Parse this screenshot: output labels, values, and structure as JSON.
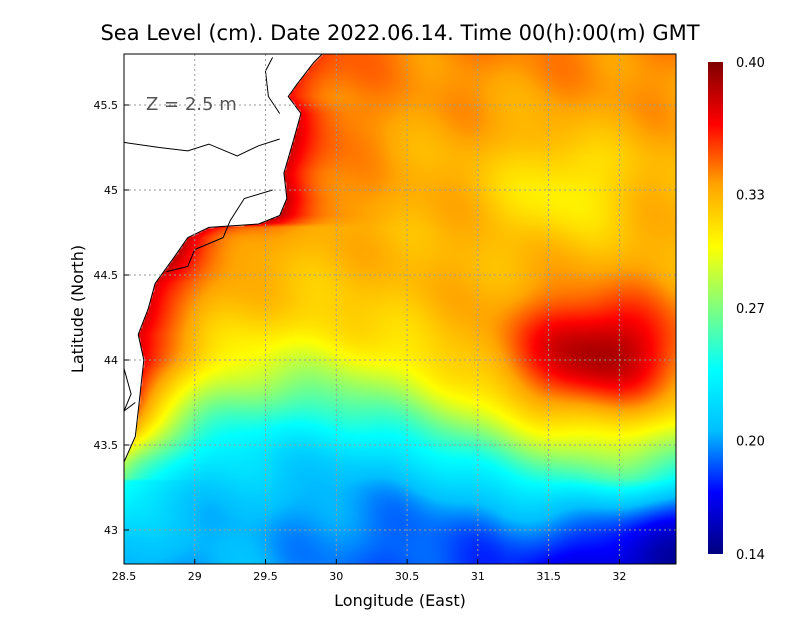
{
  "chart_data": {
    "type": "heatmap",
    "title": "Sea Level (cm). Date 2022.06.14. Time 00(h):00(m) GMT",
    "xlabel": "Longitude (East)",
    "ylabel": "Latitude (North)",
    "annotation": "Z = 2.5 m",
    "xlim": [
      28.5,
      32.4
    ],
    "ylim": [
      42.8,
      45.8
    ],
    "x_ticks": [
      "28.5",
      "29",
      "29.5",
      "30",
      "30.5",
      "31",
      "31.5",
      "32"
    ],
    "y_ticks": [
      "43",
      "43.5",
      "44",
      "44.5",
      "45",
      "45.5"
    ],
    "grid": true,
    "colorbar": {
      "min": 0.14,
      "max": 0.4,
      "tick_labels": [
        "0.40",
        "0.33",
        "0.27",
        "0.20",
        "0.14"
      ],
      "colormap": [
        "#00007f",
        "#0000ff",
        "#00bfff",
        "#00ffff",
        "#7fff7f",
        "#ffff00",
        "#ffa500",
        "#ff0000",
        "#7f0000"
      ]
    },
    "field_features": [
      {
        "region": "coastal band along west/north shore",
        "value": 0.38
      },
      {
        "region": "eddy centered near 31.9E 44.0N",
        "value": 0.39
      },
      {
        "region": "high near 31.6E 45.0N",
        "value": 0.3
      },
      {
        "region": "interior plateau",
        "value": 0.31
      },
      {
        "region": "southern band near 43.2N",
        "value": 0.2
      },
      {
        "region": "southeast corner",
        "value": 0.15
      }
    ]
  },
  "colors": {
    "grid": "#9a9a9a",
    "coast": "#000000",
    "land": "#ffffff"
  }
}
